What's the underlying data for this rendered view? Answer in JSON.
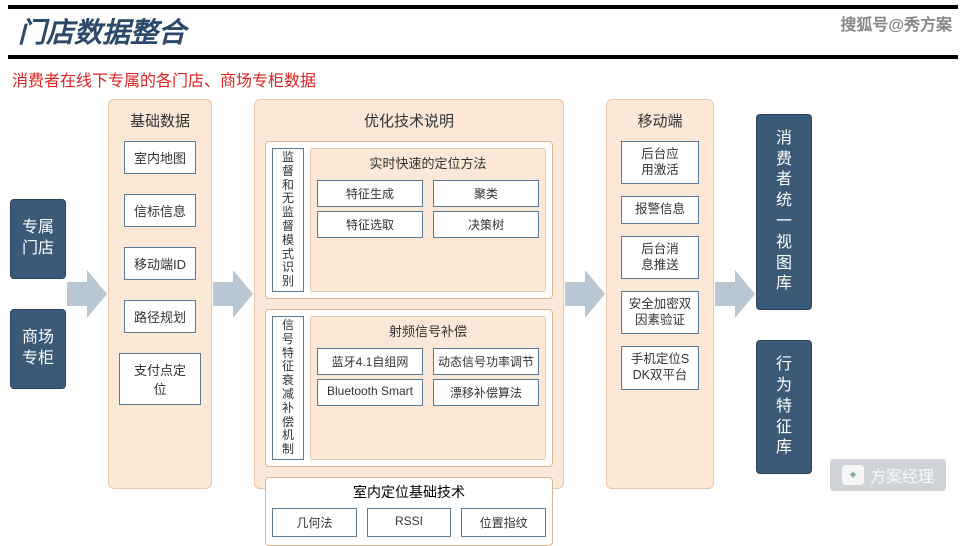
{
  "colors": {
    "dark_blue": "#3a5a78",
    "peach_bg": "#fbe8d6",
    "peach_border": "#e8c8a8",
    "box_border": "#5a7a96",
    "arrow": "#b9c7d2",
    "title_color": "#2b4a6a",
    "subtitle_color": "#d22"
  },
  "header": {
    "title": "门店数据整合",
    "subtitle": "消费者在线下专属的各门店、商场专柜数据"
  },
  "watermarks": {
    "top": "搜狐号@秀方案",
    "bottom": "方案经理"
  },
  "left_sources": [
    "专属门店",
    "商场专柜"
  ],
  "basic_data": {
    "title": "基础数据",
    "items": [
      "室内地图",
      "信标信息",
      "移动端ID",
      "路径规划",
      "支付点定位"
    ]
  },
  "optimization": {
    "title": "优化技术说明",
    "group1": {
      "side": "监督和无监督模式识别",
      "heading": "实时快速的定位方法",
      "rows": [
        [
          "特征生成",
          "聚类"
        ],
        [
          "特征选取",
          "决策树"
        ]
      ]
    },
    "group2": {
      "side": "信号特征衰减补偿机制",
      "heading": "射频信号补偿",
      "rows": [
        [
          "蓝牙4.1自组网",
          "动态信号功率调节"
        ],
        [
          "Bluetooth Smart",
          "漂移补偿算法"
        ]
      ]
    },
    "base_tech": {
      "heading": "室内定位基础技术",
      "items": [
        "几何法",
        "RSSI",
        "位置指纹"
      ]
    }
  },
  "mobile": {
    "title": "移动端",
    "items": [
      "后台应用激活",
      "报警信息",
      "后台消息推送",
      "安全加密双因素验证",
      "手机定位SDK双平台"
    ]
  },
  "right_outputs": [
    "消费者统一视图库",
    "行为特征库"
  ]
}
